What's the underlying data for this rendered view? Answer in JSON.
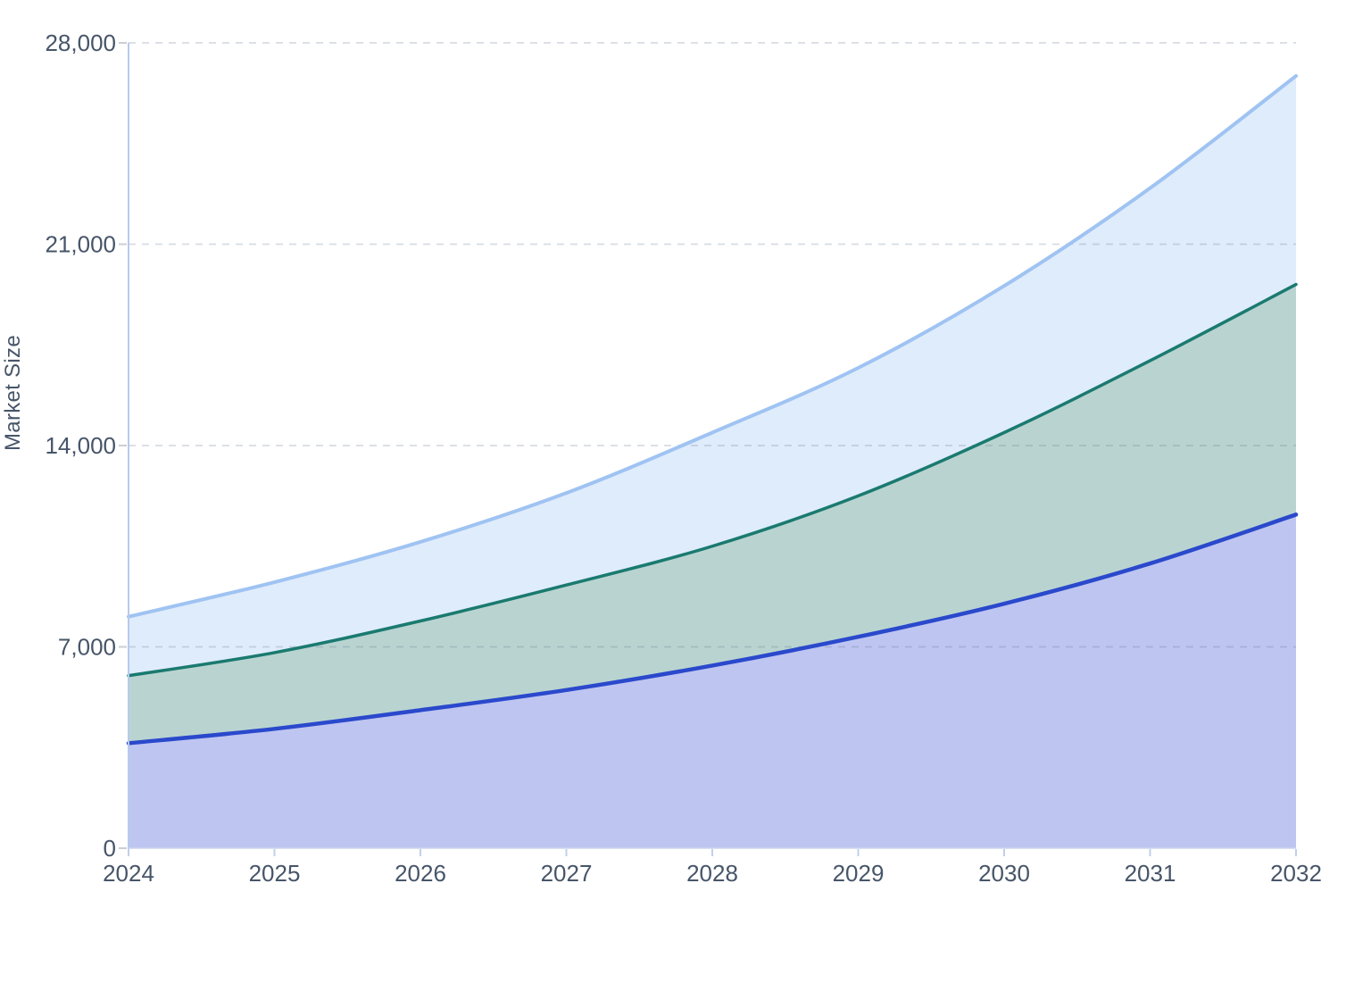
{
  "chart_data": {
    "type": "area",
    "title": "",
    "xlabel": "",
    "ylabel": "Market Size",
    "x": [
      2024,
      2025,
      2026,
      2027,
      2028,
      2029,
      2030,
      2031,
      2032
    ],
    "x_tick_labels": [
      "2024",
      "2025",
      "2026",
      "2027",
      "2028",
      "2029",
      "2030",
      "2031",
      "2032"
    ],
    "y_ticks": [
      0,
      7000,
      14000,
      21000,
      28000
    ],
    "y_tick_labels": [
      "0",
      "7,000",
      "14,000",
      "21,000",
      "28,000"
    ],
    "ylim": [
      0,
      28000
    ],
    "xlim": [
      2024,
      2032
    ],
    "grid": "horizontal-dashed",
    "legend": "none",
    "series": [
      {
        "name": "light-blue-series",
        "line_color": "#9fc3f2",
        "fill_color": "#dfecfb",
        "line_width": 4,
        "values": [
          8050,
          9250,
          10650,
          12350,
          14450,
          16700,
          19550,
          22950,
          26850
        ]
      },
      {
        "name": "teal-series",
        "line_color": "#1a7a70",
        "fill_color": "#b9d4d0",
        "line_width": 3.5,
        "values": [
          6000,
          6800,
          7900,
          9150,
          10500,
          12250,
          14450,
          16950,
          19600
        ]
      },
      {
        "name": "blue-series",
        "line_color": "#2a49cc",
        "fill_color": "#bec5f1",
        "line_width": 4.5,
        "values": [
          3650,
          4150,
          4800,
          5500,
          6350,
          7350,
          8500,
          9900,
          11600
        ]
      }
    ],
    "style_colors": {
      "tick_label": "#475569",
      "axis_line": "#b9c9ec",
      "gridline": "rgba(100,116,139,0.25)",
      "y_tick_mark": "#c9ced6",
      "x_tick_mark": "#c2cfec",
      "baseline": "#ccd6ec",
      "background": "#ffffff"
    }
  }
}
